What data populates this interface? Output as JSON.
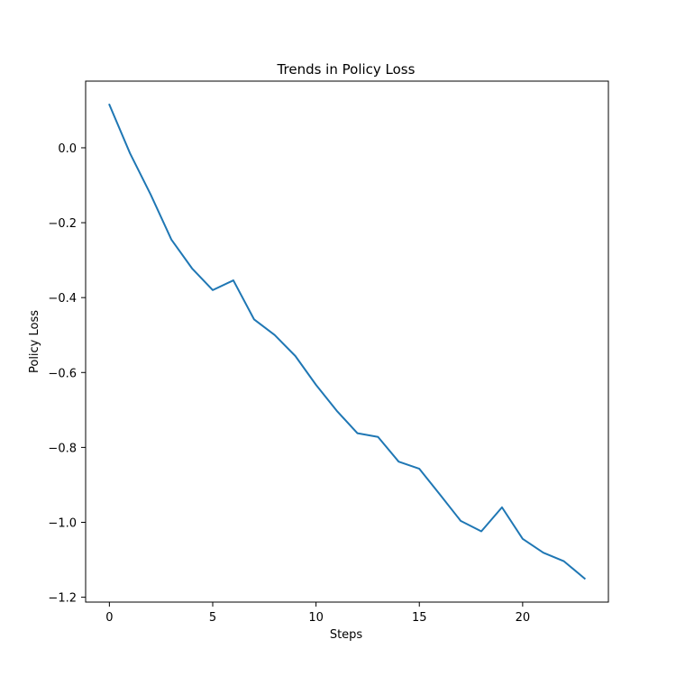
{
  "chart_data": {
    "type": "line",
    "title": "Trends in Policy Loss",
    "xlabel": "Steps",
    "ylabel": "Policy Loss",
    "x": [
      0,
      1,
      2,
      3,
      4,
      5,
      6,
      7,
      8,
      9,
      10,
      11,
      12,
      13,
      14,
      15,
      16,
      17,
      18,
      19,
      20,
      21,
      22,
      23
    ],
    "series": [
      {
        "values": [
          0.115,
          -0.015,
          -0.125,
          -0.245,
          -0.322,
          -0.38,
          -0.354,
          -0.458,
          -0.5,
          -0.556,
          -0.633,
          -0.702,
          -0.762,
          -0.772,
          -0.838,
          -0.857,
          -0.926,
          -0.996,
          -1.024,
          -0.96,
          -1.044,
          -1.081,
          -1.104,
          -1.15
        ],
        "color": "#1f77b4"
      }
    ],
    "xlim": [
      -1.15,
      24.15
    ],
    "ylim": [
      -1.213,
      0.178
    ],
    "xticks": [
      0,
      5,
      10,
      15,
      20
    ],
    "yticks": [
      0.0,
      -0.2,
      -0.4,
      -0.6,
      -0.8,
      -1.0,
      -1.2
    ],
    "ytick_labels": [
      "0.0",
      "−0.2",
      "−0.4",
      "−0.6",
      "−0.8",
      "−1.0",
      "−1.2"
    ],
    "grid": false,
    "legend": "none"
  }
}
